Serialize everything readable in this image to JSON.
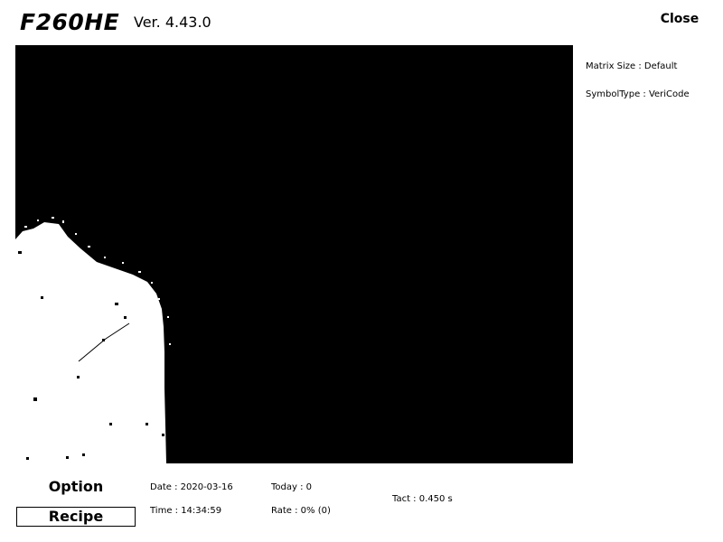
{
  "header": {
    "logo": "F260HE",
    "version": "Ver. 4.43.0",
    "close_label": "Close"
  },
  "info": {
    "matrix_size": "Matrix Size : Default",
    "symbol_type": "SymbolType : VeriCode"
  },
  "buttons": {
    "option_label": "Option",
    "recipe_label": "Recipe"
  },
  "status": {
    "date": "Date : 2020-03-16",
    "time": "Time : 14:34:59",
    "today": "Today : 0",
    "rate": "Rate : 0% (0)",
    "tact": "Tact : 0.450 s"
  }
}
